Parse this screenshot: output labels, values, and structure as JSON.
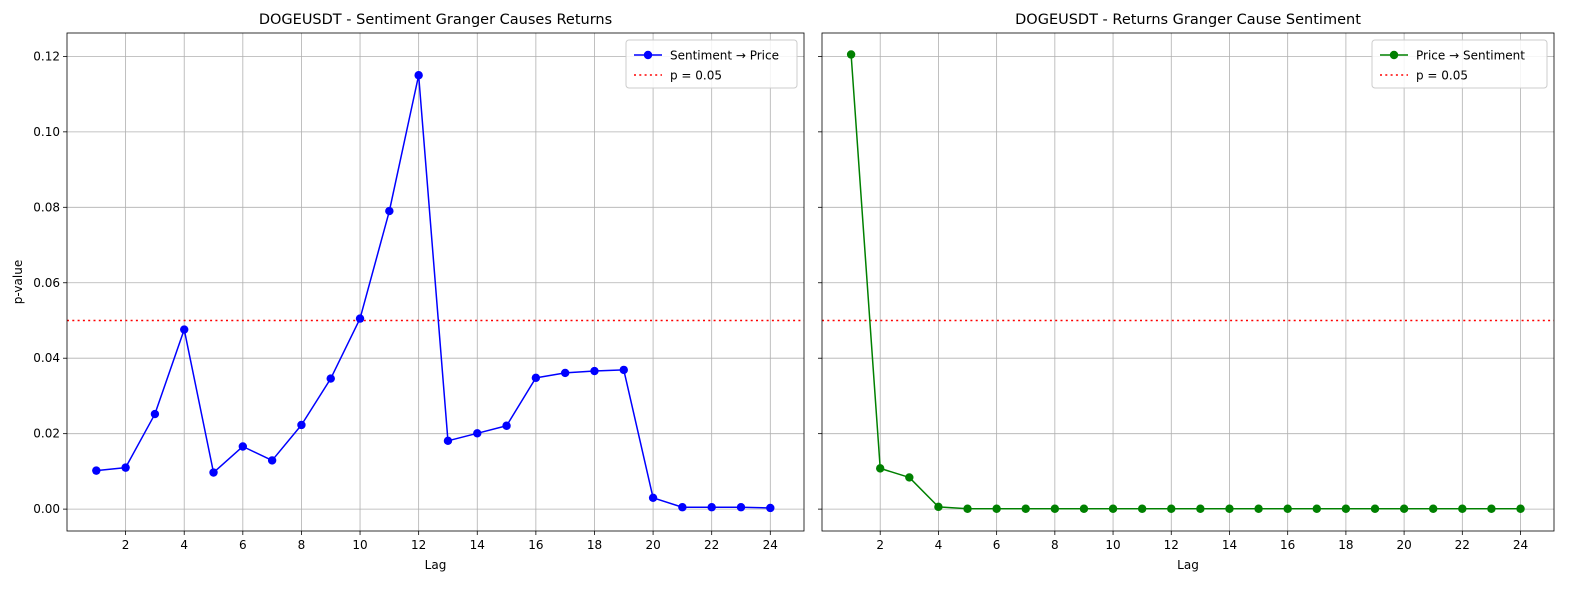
{
  "threshold": 0.05,
  "chart_data": [
    {
      "type": "line",
      "title": "DOGEUSDT - Sentiment Granger Causes Returns",
      "xlabel": "Lag",
      "ylabel": "p-value",
      "xlim": [
        0.0,
        25.15
      ],
      "ylim": [
        -0.0058,
        0.1262
      ],
      "xticks": [
        2,
        4,
        6,
        8,
        10,
        12,
        14,
        16,
        18,
        20,
        22,
        24
      ],
      "yticks": [
        0.0,
        0.02,
        0.04,
        0.06,
        0.08,
        0.1,
        0.12
      ],
      "ytick_labels": [
        "0.00",
        "0.02",
        "0.04",
        "0.06",
        "0.08",
        "0.10",
        "0.12"
      ],
      "grid": true,
      "legend_position": "upper right",
      "series": [
        {
          "name": "Sentiment → Price",
          "color": "#0000ff",
          "marker": "circle",
          "x": [
            1,
            2,
            3,
            4,
            5,
            6,
            7,
            8,
            9,
            10,
            11,
            12,
            13,
            14,
            15,
            16,
            17,
            18,
            19,
            20,
            21,
            22,
            23,
            24
          ],
          "values": [
            0.0102,
            0.011,
            0.0252,
            0.0476,
            0.0097,
            0.0166,
            0.0129,
            0.0223,
            0.0346,
            0.0505,
            0.079,
            0.115,
            0.0181,
            0.0201,
            0.0221,
            0.0348,
            0.0361,
            0.0366,
            0.0369,
            0.003,
            0.0005,
            0.0005,
            0.0005,
            0.0003
          ]
        }
      ],
      "reference_lines": [
        {
          "name": "p = 0.05",
          "y": 0.05,
          "color": "#ff0000",
          "style": "dotted"
        }
      ]
    },
    {
      "type": "line",
      "title": "DOGEUSDT - Returns Granger Cause Sentiment",
      "xlabel": "Lag",
      "ylabel": "",
      "xlim": [
        0.0,
        25.15
      ],
      "ylim": [
        -0.0058,
        0.1262
      ],
      "xticks": [
        2,
        4,
        6,
        8,
        10,
        12,
        14,
        16,
        18,
        20,
        22,
        24
      ],
      "yticks": [
        0.0,
        0.02,
        0.04,
        0.06,
        0.08,
        0.1,
        0.12
      ],
      "ytick_labels": [],
      "grid": true,
      "legend_position": "upper right",
      "series": [
        {
          "name": "Price → Sentiment",
          "color": "#008000",
          "marker": "circle",
          "x": [
            1,
            2,
            3,
            4,
            5,
            6,
            7,
            8,
            9,
            10,
            11,
            12,
            13,
            14,
            15,
            16,
            17,
            18,
            19,
            20,
            21,
            22,
            23,
            24
          ],
          "values": [
            0.1205,
            0.0108,
            0.0084,
            0.0006,
            0.0001,
            0.0001,
            0.0001,
            0.0001,
            0.0001,
            0.0001,
            0.0001,
            0.0001,
            0.0001,
            0.0001,
            0.0001,
            0.0001,
            0.0001,
            0.0001,
            0.0001,
            0.0001,
            0.0001,
            0.0001,
            0.0001,
            0.0001
          ]
        }
      ],
      "reference_lines": [
        {
          "name": "p = 0.05",
          "y": 0.05,
          "color": "#ff0000",
          "style": "dotted"
        }
      ]
    }
  ]
}
